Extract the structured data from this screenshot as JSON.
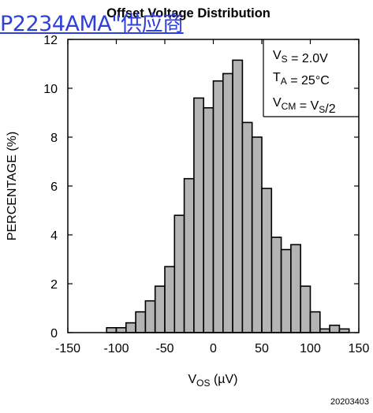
{
  "overlay_link": "P2234AMA\"供应商",
  "footer_code": "20203403",
  "chart_data": {
    "type": "bar",
    "title": "Offset Voltage Distribution",
    "xlabel": {
      "main": "V",
      "sub": "OS",
      "rest": " (µV)"
    },
    "ylabel": "PERCENTAGE (%)",
    "xlim": [
      -150,
      150
    ],
    "ylim": [
      0,
      12
    ],
    "xticks": [
      "-150",
      "-100",
      "-50",
      "0",
      "50",
      "100",
      "150"
    ],
    "yticks": [
      "0",
      "2",
      "4",
      "6",
      "8",
      "10",
      "12"
    ],
    "bin_width": 10,
    "grid": false,
    "bar_color": "#b4b4b4",
    "bins": [
      {
        "x": -105,
        "value": 0.2
      },
      {
        "x": -95,
        "value": 0.2
      },
      {
        "x": -85,
        "value": 0.4
      },
      {
        "x": -75,
        "value": 0.85
      },
      {
        "x": -65,
        "value": 1.3
      },
      {
        "x": -55,
        "value": 1.9
      },
      {
        "x": -45,
        "value": 2.7
      },
      {
        "x": -35,
        "value": 4.8
      },
      {
        "x": -25,
        "value": 6.3
      },
      {
        "x": -15,
        "value": 9.6
      },
      {
        "x": -5,
        "value": 9.2
      },
      {
        "x": 5,
        "value": 10.3
      },
      {
        "x": 15,
        "value": 10.6
      },
      {
        "x": 25,
        "value": 11.15
      },
      {
        "x": 35,
        "value": 8.6
      },
      {
        "x": 45,
        "value": 8.0
      },
      {
        "x": 55,
        "value": 5.9
      },
      {
        "x": 65,
        "value": 3.9
      },
      {
        "x": 75,
        "value": 3.4
      },
      {
        "x": 85,
        "value": 3.6
      },
      {
        "x": 95,
        "value": 1.9
      },
      {
        "x": 105,
        "value": 0.85
      },
      {
        "x": 115,
        "value": 0.15
      },
      {
        "x": 125,
        "value": 0.3
      },
      {
        "x": 135,
        "value": 0.15
      }
    ],
    "annotations": [
      {
        "id": "vs",
        "parts": [
          [
            "V",
            ""
          ],
          [
            "S",
            "sub"
          ],
          [
            " = 2.0V",
            ""
          ]
        ]
      },
      {
        "id": "ta",
        "parts": [
          [
            "T",
            ""
          ],
          [
            "A",
            "sub"
          ],
          [
            " = 25°C",
            ""
          ]
        ]
      },
      {
        "id": "vcm",
        "parts": [
          [
            "V",
            ""
          ],
          [
            "CM",
            "sub"
          ],
          [
            " = V",
            ""
          ],
          [
            "S",
            "sub"
          ],
          [
            "/2",
            ""
          ]
        ]
      }
    ]
  }
}
